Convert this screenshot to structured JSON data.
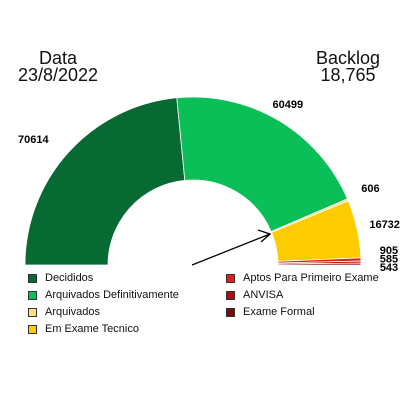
{
  "header": {
    "left_title": "Data",
    "left_value": "23/8/2022",
    "right_title": "Backlog",
    "right_value": "18,765"
  },
  "chart_data": {
    "type": "pie",
    "subtype": "half-donut gauge",
    "title": "",
    "series": [
      {
        "name": "Decididos",
        "value": 70614,
        "color": "#066a32"
      },
      {
        "name": "Arquivados Definitivamente",
        "value": 60499,
        "color": "#0bbf58"
      },
      {
        "name": "Arquivados",
        "value": 606,
        "color": "#f7e07f"
      },
      {
        "name": "Em Exame Tecnico",
        "value": 16732,
        "color": "#fccc00"
      },
      {
        "name": "Aptos Para Primeiro Exame",
        "value": 905,
        "color": "#e31c1c"
      },
      {
        "name": "ANVISA",
        "value": 585,
        "color": "#b00e0e"
      },
      {
        "name": "Exame Formal",
        "value": 543,
        "color": "#7a0a0a"
      }
    ],
    "data_labels": [
      "70614",
      "60499",
      "606",
      "16732",
      "905",
      "585",
      "543"
    ],
    "arrow": true,
    "legend_placement": "bottom"
  }
}
